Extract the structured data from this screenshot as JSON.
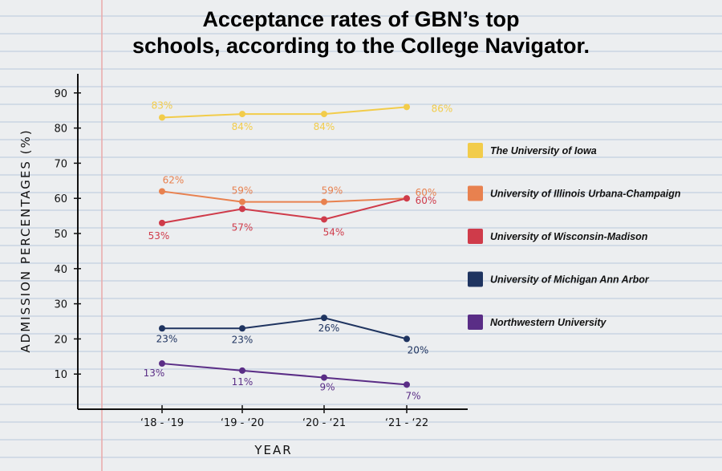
{
  "chart_data": {
    "type": "line",
    "title_lines": [
      "Acceptance rates of GBN’s top",
      "schools, according to the College Navigator."
    ],
    "xlabel": "YEAR",
    "ylabel": "ADMISSION PERCENTAGES (%)",
    "categories": [
      "‘18 - ‘19",
      "‘19 - ‘20",
      "‘20 - ‘21",
      "‘21 - ‘22"
    ],
    "yticks": [
      "10",
      "20",
      "30",
      "40",
      "50",
      "60",
      "70",
      "80",
      "90"
    ],
    "ylim": [
      0,
      95
    ],
    "legend_position": "right",
    "series": [
      {
        "name": "The University of Iowa",
        "color": "#f2cc4a",
        "values": [
          83,
          84,
          84,
          86
        ],
        "labels": [
          "83%",
          "84%",
          "84%",
          "86%"
        ]
      },
      {
        "name": "University of Illinois Urbana-Champaign",
        "color": "#e8814f",
        "values": [
          62,
          59,
          59,
          60
        ],
        "labels": [
          "62%",
          "59%",
          "59%",
          "60%"
        ]
      },
      {
        "name": "University of Wisconsin-Madison",
        "color": "#cf3b4a",
        "values": [
          53,
          57,
          54,
          60
        ],
        "labels": [
          "53%",
          "57%",
          "54%",
          "60%"
        ]
      },
      {
        "name": "University of Michigan Ann Arbor",
        "color": "#1f3460",
        "values": [
          23,
          23,
          26,
          20
        ],
        "labels": [
          "23%",
          "23%",
          "26%",
          "20%"
        ]
      },
      {
        "name": "Northwestern University",
        "color": "#5a2d86",
        "values": [
          13,
          11,
          9,
          7
        ],
        "labels": [
          "13%",
          "11%",
          "9%",
          "7%"
        ]
      }
    ]
  }
}
